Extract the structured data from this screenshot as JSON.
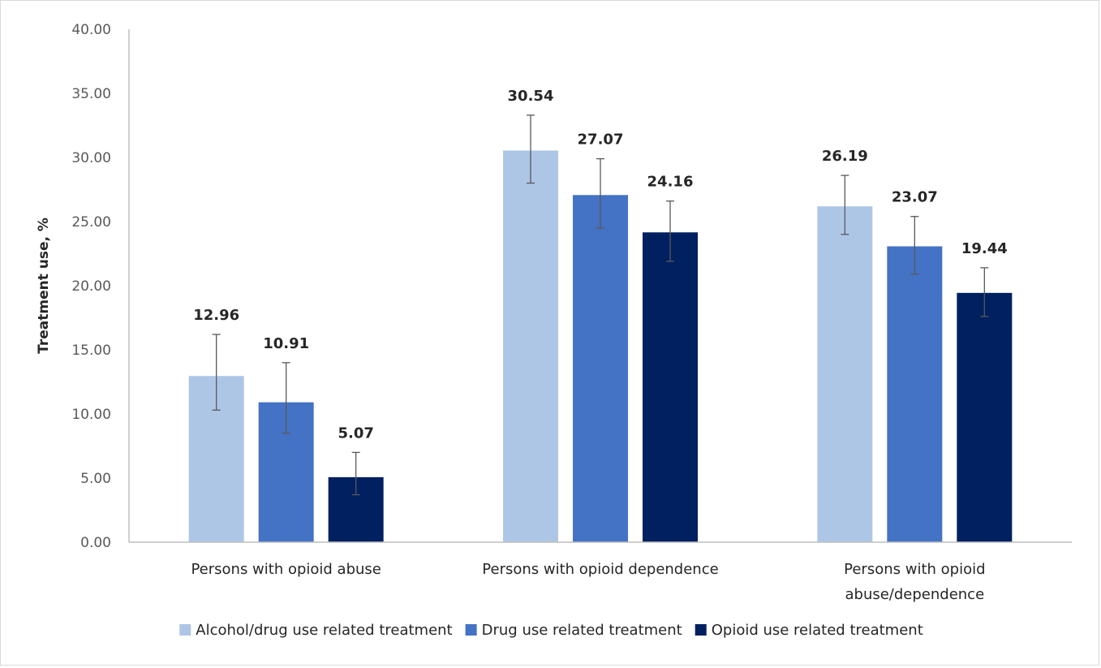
{
  "chart_data": {
    "type": "bar",
    "title": "",
    "xlabel": "",
    "ylabel": "Treatment use, %",
    "ylim": [
      0,
      40
    ],
    "ytick_step": 5,
    "ytick_labels": [
      "0.00",
      "5.00",
      "10.00",
      "15.00",
      "20.00",
      "25.00",
      "30.00",
      "35.00",
      "40.00"
    ],
    "grid": false,
    "legend_position": "bottom",
    "categories": [
      [
        "Persons with opioid abuse"
      ],
      [
        "Persons with opioid dependence"
      ],
      [
        "Persons with opioid",
        "abuse/dependence"
      ]
    ],
    "series": [
      {
        "name": "Alcohol/drug use related treatment",
        "color": "#aec6e6",
        "values": [
          12.96,
          30.54,
          26.19
        ],
        "labels": [
          "12.96",
          "30.54",
          "26.19"
        ],
        "error_low": [
          10.3,
          28.0,
          24.0
        ],
        "error_high": [
          16.2,
          33.3,
          28.6
        ]
      },
      {
        "name": "Drug use related treatment",
        "color": "#4472c4",
        "values": [
          10.91,
          27.07,
          23.07
        ],
        "labels": [
          "10.91",
          "27.07",
          "23.07"
        ],
        "error_low": [
          8.5,
          24.5,
          20.9
        ],
        "error_high": [
          14.0,
          29.9,
          25.4
        ]
      },
      {
        "name": "Opioid use related treatment",
        "color": "#002060",
        "values": [
          5.07,
          24.16,
          19.44
        ],
        "labels": [
          "5.07",
          "24.16",
          "19.44"
        ],
        "error_low": [
          3.7,
          21.9,
          17.6
        ],
        "error_high": [
          7.0,
          26.6,
          21.4
        ]
      }
    ]
  }
}
